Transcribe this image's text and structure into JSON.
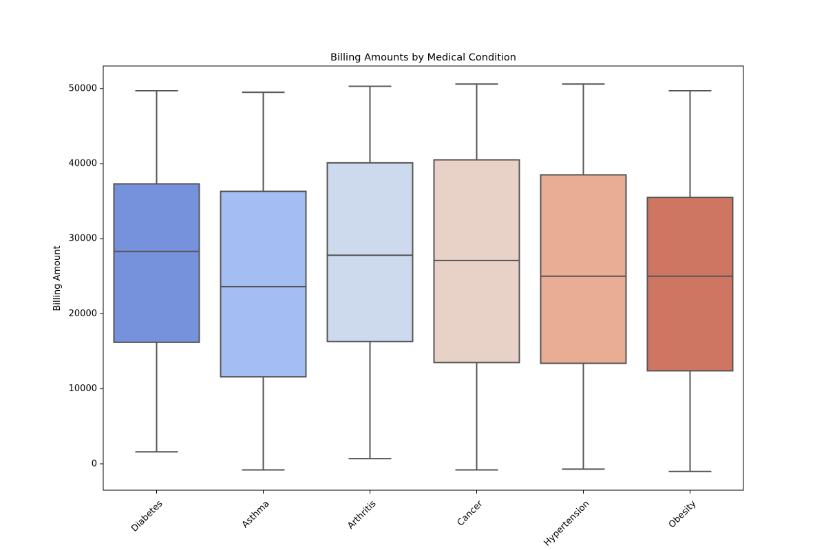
{
  "chart_data": {
    "type": "box",
    "title": "Billing Amounts by Medical Condition",
    "xlabel": "",
    "ylabel": "Billing Amount",
    "ylim": [
      -3500,
      53000
    ],
    "yticks": [
      0,
      10000,
      20000,
      30000,
      40000,
      50000
    ],
    "ytick_labels": [
      "0",
      "10000",
      "20000",
      "30000",
      "40000",
      "50000"
    ],
    "categories": [
      "Diabetes",
      "Asthma",
      "Arthritis",
      "Cancer",
      "Hypertension",
      "Obesity"
    ],
    "boxes": [
      {
        "category": "Diabetes",
        "whisker_low": 1600,
        "q1": 16200,
        "median": 28300,
        "q3": 37300,
        "whisker_high": 49700,
        "color": "#7792dc"
      },
      {
        "category": "Asthma",
        "whisker_low": -800,
        "q1": 11600,
        "median": 23600,
        "q3": 36300,
        "whisker_high": 49500,
        "color": "#a4bef3"
      },
      {
        "category": "Arthritis",
        "whisker_low": 700,
        "q1": 16300,
        "median": 27800,
        "q3": 40100,
        "whisker_high": 50300,
        "color": "#cdd9ec"
      },
      {
        "category": "Cancer",
        "whisker_low": -800,
        "q1": 13500,
        "median": 27100,
        "q3": 40500,
        "whisker_high": 50600,
        "color": "#e8d1c7"
      },
      {
        "category": "Hypertension",
        "whisker_low": -700,
        "q1": 13400,
        "median": 25000,
        "q3": 38500,
        "whisker_high": 50600,
        "color": "#e9ac95"
      },
      {
        "category": "Obesity",
        "whisker_low": -1000,
        "q1": 12400,
        "median": 25000,
        "q3": 35500,
        "whisker_high": 49700,
        "color": "#cf7662"
      }
    ],
    "box_edge_color": "#555555",
    "grid": false,
    "legend": "none"
  }
}
